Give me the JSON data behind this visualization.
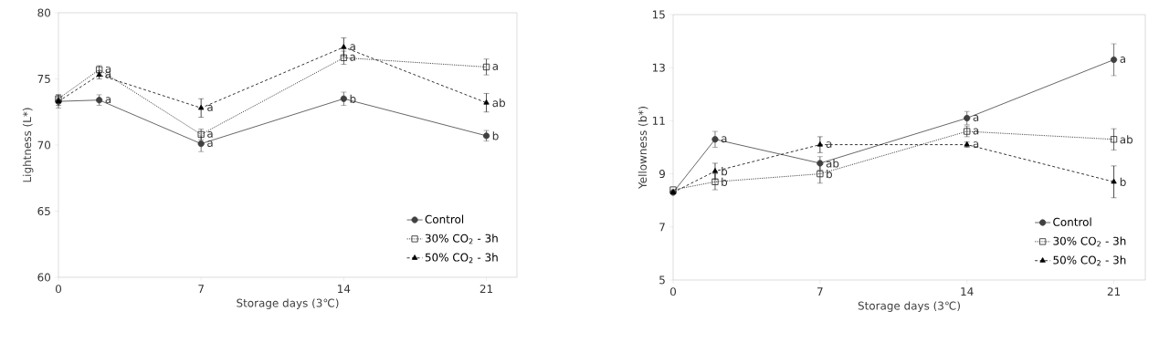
{
  "chart_data": [
    {
      "type": "line",
      "xlabel": "Storage days (3℃)",
      "ylabel": "Lightness (L*)",
      "x": [
        0,
        2,
        7,
        14,
        21
      ],
      "xlim": [
        0,
        22.5
      ],
      "xticks": [
        0,
        7,
        14,
        21
      ],
      "ylim": [
        60,
        80
      ],
      "yticks": [
        60,
        65,
        70,
        75,
        80
      ],
      "grid": false,
      "legend": "bottom right",
      "series": [
        {
          "name": "Control",
          "color": "#404040",
          "marker": "circle",
          "line_style": "solid",
          "values": [
            73.3,
            73.4,
            70.1,
            73.5,
            70.7
          ],
          "errors": [
            0.5,
            0.4,
            0.6,
            0.5,
            0.4
          ]
        },
        {
          "name": "30% CO$_{2}$ - 3h",
          "color": "#202020",
          "marker": "square",
          "line_style": "dotted",
          "values": [
            73.5,
            75.7,
            70.8,
            76.6,
            75.9
          ],
          "errors": [
            0.3,
            0.3,
            0.4,
            0.5,
            0.6
          ]
        },
        {
          "name": "50% CO$_{2}$ - 3h",
          "color": "#000000",
          "marker": "triangle",
          "line_style": "dashed",
          "values": [
            73.3,
            75.3,
            72.8,
            77.4,
            73.2
          ],
          "errors": [
            0.3,
            0.3,
            0.7,
            0.7,
            0.7
          ]
        }
      ],
      "annotations": [
        {
          "text": "a",
          "x": 2,
          "y": 73.4
        },
        {
          "text": "a",
          "x": 7,
          "y": 70.1
        },
        {
          "text": "b",
          "x": 14,
          "y": 73.5
        },
        {
          "text": "b",
          "x": 21,
          "y": 70.7
        },
        {
          "text": "a",
          "x": 2,
          "y": 75.7
        },
        {
          "text": "a",
          "x": 7,
          "y": 70.8
        },
        {
          "text": "a",
          "x": 14,
          "y": 76.6
        },
        {
          "text": "a",
          "x": 21,
          "y": 75.9
        },
        {
          "text": "a",
          "x": 2,
          "y": 75.3
        },
        {
          "text": "a",
          "x": 7,
          "y": 72.8
        },
        {
          "text": "a",
          "x": 14,
          "y": 77.4
        },
        {
          "text": "ab",
          "x": 21,
          "y": 73.2
        }
      ]
    },
    {
      "type": "line",
      "xlabel": "Storage days (3℃)",
      "ylabel": "Yellowness (b*)",
      "x": [
        0,
        2,
        7,
        14,
        21
      ],
      "xlim": [
        0,
        22.5
      ],
      "xticks": [
        0,
        7,
        14,
        21
      ],
      "ylim": [
        5,
        15
      ],
      "yticks": [
        5,
        7,
        9,
        11,
        13,
        15
      ],
      "grid": false,
      "legend": "bottom right",
      "series": [
        {
          "name": "Control",
          "color": "#404040",
          "marker": "circle",
          "line_style": "solid",
          "values": [
            8.3,
            10.3,
            9.4,
            11.1,
            13.3
          ],
          "errors": [
            null,
            0.3,
            0.25,
            0.25,
            0.6
          ]
        },
        {
          "name": "30% CO$_{2}$ - 3h",
          "color": "#202020",
          "marker": "square",
          "line_style": "dotted",
          "values": [
            8.4,
            8.7,
            9.0,
            10.6,
            10.3
          ],
          "errors": [
            null,
            0.3,
            0.35,
            0.2,
            0.4
          ]
        },
        {
          "name": "50% CO$_{2}$ - 3h",
          "color": "#000000",
          "marker": "triangle",
          "line_style": "dashed",
          "values": [
            8.3,
            9.1,
            10.1,
            10.1,
            8.7
          ],
          "errors": [
            null,
            0.3,
            0.3,
            0.1,
            0.6
          ]
        }
      ],
      "annotations": [
        {
          "text": "a",
          "x": 2,
          "y": 10.3
        },
        {
          "text": "ab",
          "x": 7,
          "y": 9.4
        },
        {
          "text": "a",
          "x": 14,
          "y": 11.1
        },
        {
          "text": "a",
          "x": 21,
          "y": 13.3
        },
        {
          "text": "b",
          "x": 2,
          "y": 8.7
        },
        {
          "text": "b",
          "x": 7,
          "y": 9.0
        },
        {
          "text": "a",
          "x": 14,
          "y": 10.6
        },
        {
          "text": "ab",
          "x": 21,
          "y": 10.3
        },
        {
          "text": "b",
          "x": 2,
          "y": 9.1
        },
        {
          "text": "a",
          "x": 7,
          "y": 10.1
        },
        {
          "text": "a",
          "x": 14,
          "y": 10.1
        },
        {
          "text": "b",
          "x": 21,
          "y": 8.7
        }
      ]
    }
  ]
}
